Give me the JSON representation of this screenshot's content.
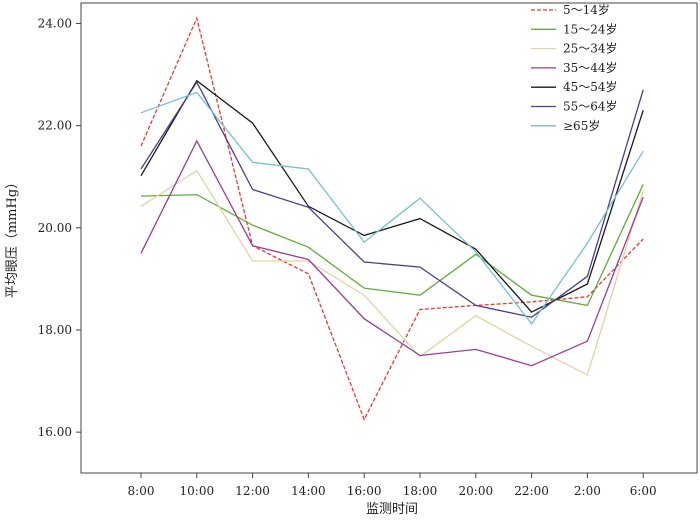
{
  "chart_data": {
    "type": "line",
    "title": "",
    "xlabel": "监测时间",
    "ylabel": "平均眼压（mmHg）",
    "categories": [
      "8:00",
      "10:00",
      "12:00",
      "14:00",
      "16:00",
      "18:00",
      "20:00",
      "22:00",
      "2:00",
      "6:00"
    ],
    "y_ticks": [
      "16.00",
      "18.00",
      "20.00",
      "22.00",
      "24.00"
    ],
    "ylim": [
      15.2,
      24.4
    ],
    "grid": false,
    "legend_position": "top-right",
    "series": [
      {
        "name": "5～14岁",
        "color": "#e8382f",
        "dashed": true,
        "values": [
          21.6,
          24.1,
          19.65,
          19.1,
          16.25,
          18.4,
          18.48,
          18.55,
          18.65,
          19.78
        ]
      },
      {
        "name": "15～24岁",
        "color": "#5fae3c",
        "dashed": false,
        "values": [
          20.62,
          20.65,
          20.05,
          19.62,
          18.82,
          18.68,
          19.48,
          18.68,
          18.48,
          20.85
        ]
      },
      {
        "name": "25～34岁",
        "color": "#e2d3a6",
        "dashed": false,
        "values": [
          20.42,
          21.12,
          19.35,
          19.35,
          18.68,
          17.48,
          18.28,
          17.68,
          17.12,
          20.72
        ]
      },
      {
        "name": "35～44岁",
        "color": "#9c3b99",
        "dashed": false,
        "values": [
          19.5,
          21.7,
          19.65,
          19.38,
          18.22,
          17.5,
          17.62,
          17.3,
          17.78,
          20.6
        ]
      },
      {
        "name": "45～54岁",
        "color": "#1a1a1a",
        "dashed": false,
        "values": [
          21.02,
          22.88,
          22.05,
          20.42,
          19.85,
          20.18,
          19.58,
          18.35,
          18.9,
          22.3
        ]
      },
      {
        "name": "55～64岁",
        "color": "#4e3d8c",
        "dashed": false,
        "values": [
          21.15,
          22.85,
          20.75,
          20.4,
          19.33,
          19.23,
          18.48,
          18.25,
          19.05,
          22.7
        ]
      },
      {
        "name": "≥65岁",
        "color": "#72c2cd",
        "dashed": false,
        "values": [
          22.25,
          22.65,
          21.28,
          21.15,
          19.72,
          20.58,
          19.53,
          18.12,
          19.7,
          21.5
        ]
      }
    ]
  }
}
